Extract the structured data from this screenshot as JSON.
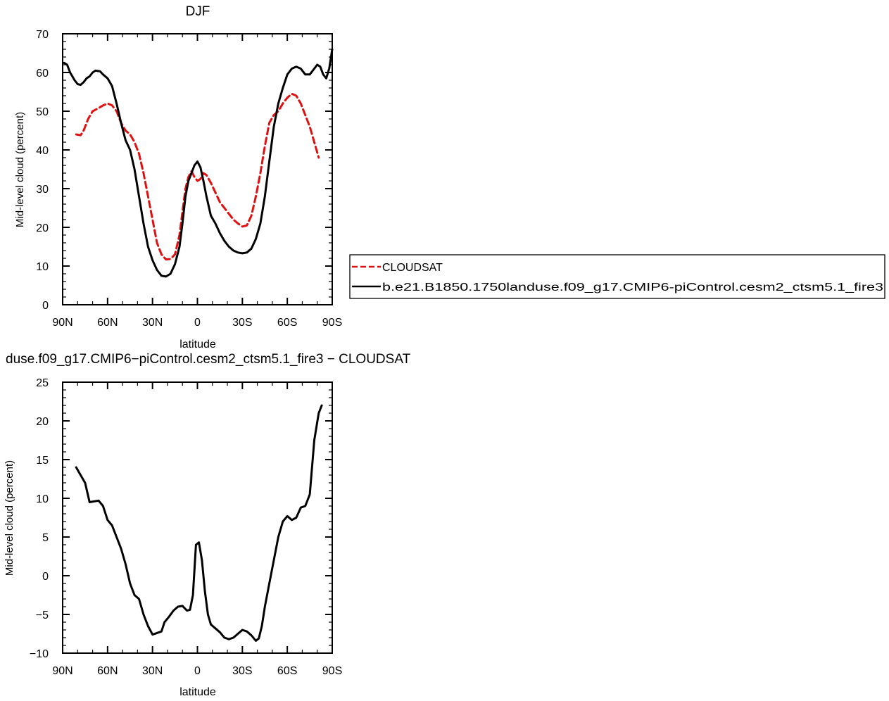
{
  "chart_data": [
    {
      "type": "line",
      "title": "DJF",
      "xlabel": "latitude",
      "ylabel": "Mid-level cloud (percent)",
      "xlim": [
        90,
        -90
      ],
      "ylim": [
        0,
        70
      ],
      "x_ticks": [
        {
          "value": 90,
          "label": "90N"
        },
        {
          "value": 60,
          "label": "60N"
        },
        {
          "value": 30,
          "label": "30N"
        },
        {
          "value": 0,
          "label": "0"
        },
        {
          "value": -30,
          "label": "30S"
        },
        {
          "value": -60,
          "label": "60S"
        },
        {
          "value": -90,
          "label": "90S"
        }
      ],
      "y_ticks": [
        0,
        10,
        20,
        30,
        40,
        50,
        60,
        70
      ],
      "grid": false,
      "legend": "right",
      "series": [
        {
          "name": "CLOUDSAT",
          "color": "#e01010",
          "dash": "dashed",
          "points": [
            [
              81,
              44
            ],
            [
              78,
              43.8
            ],
            [
              76,
              45
            ],
            [
              73,
              48
            ],
            [
              70,
              50
            ],
            [
              66,
              50.8
            ],
            [
              63,
              51.5
            ],
            [
              60,
              52
            ],
            [
              57,
              51.5
            ],
            [
              54,
              50
            ],
            [
              51,
              47
            ],
            [
              48,
              45
            ],
            [
              45,
              44
            ],
            [
              42,
              42
            ],
            [
              39,
              39
            ],
            [
              36,
              34
            ],
            [
              33,
              28
            ],
            [
              30,
              22
            ],
            [
              27,
              16
            ],
            [
              24,
              13
            ],
            [
              21,
              11.7
            ],
            [
              18,
              11.8
            ],
            [
              15,
              13
            ],
            [
              12,
              18
            ],
            [
              10,
              24
            ],
            [
              8,
              30
            ],
            [
              6,
              33
            ],
            [
              4,
              34.5
            ],
            [
              2,
              33
            ],
            [
              0,
              32
            ],
            [
              -2,
              32.5
            ],
            [
              -4,
              34
            ],
            [
              -6,
              33.5
            ],
            [
              -9,
              31.5
            ],
            [
              -12,
              29
            ],
            [
              -15,
              26.5
            ],
            [
              -18,
              25
            ],
            [
              -21,
              23.5
            ],
            [
              -24,
              22
            ],
            [
              -27,
              21
            ],
            [
              -30,
              20.2
            ],
            [
              -33,
              20.5
            ],
            [
              -36,
              23
            ],
            [
              -39,
              28
            ],
            [
              -42,
              34
            ],
            [
              -45,
              41
            ],
            [
              -48,
              47
            ],
            [
              -51,
              49
            ],
            [
              -54,
              50
            ],
            [
              -57,
              52
            ],
            [
              -60,
              53.5
            ],
            [
              -63,
              54.5
            ],
            [
              -66,
              54
            ],
            [
              -69,
              52
            ],
            [
              -72,
              49
            ],
            [
              -75,
              46
            ],
            [
              -78,
              42
            ],
            [
              -81,
              38
            ]
          ]
        },
        {
          "name": "b.e21.B1850.1750landuse.f09_g17.CMIP6-piControl.cesm2_ctsm5.1_fire3",
          "color": "#000000",
          "dash": "solid",
          "points": [
            [
              89,
              62.5
            ],
            [
              87,
              62
            ],
            [
              85,
              60
            ],
            [
              82,
              58
            ],
            [
              80,
              57
            ],
            [
              78,
              56.8
            ],
            [
              76,
              57.5
            ],
            [
              74,
              58.5
            ],
            [
              72,
              59
            ],
            [
              70,
              60
            ],
            [
              68,
              60.5
            ],
            [
              65,
              60.3
            ],
            [
              63,
              59.5
            ],
            [
              60,
              58.5
            ],
            [
              57,
              56.5
            ],
            [
              54,
              52
            ],
            [
              51,
              47
            ],
            [
              48,
              42.5
            ],
            [
              45,
              40
            ],
            [
              42,
              35
            ],
            [
              39,
              28
            ],
            [
              36,
              21
            ],
            [
              33,
              15
            ],
            [
              30,
              11.5
            ],
            [
              27,
              9
            ],
            [
              24,
              7.5
            ],
            [
              21,
              7.3
            ],
            [
              18,
              8
            ],
            [
              15,
              10.5
            ],
            [
              12,
              15
            ],
            [
              10,
              21
            ],
            [
              8,
              28
            ],
            [
              6,
              32
            ],
            [
              4,
              34
            ],
            [
              2,
              36
            ],
            [
              0,
              37
            ],
            [
              -2,
              35.5
            ],
            [
              -4,
              32
            ],
            [
              -6,
              28
            ],
            [
              -9,
              23
            ],
            [
              -12,
              21
            ],
            [
              -15,
              18.5
            ],
            [
              -18,
              16.5
            ],
            [
              -21,
              15
            ],
            [
              -24,
              14
            ],
            [
              -27,
              13.5
            ],
            [
              -30,
              13.3
            ],
            [
              -33,
              13.5
            ],
            [
              -36,
              14.5
            ],
            [
              -39,
              17
            ],
            [
              -42,
              21
            ],
            [
              -45,
              28
            ],
            [
              -48,
              37
            ],
            [
              -51,
              46
            ],
            [
              -54,
              52
            ],
            [
              -57,
              56
            ],
            [
              -60,
              59.5
            ],
            [
              -63,
              61
            ],
            [
              -66,
              61.5
            ],
            [
              -69,
              61
            ],
            [
              -72,
              59.5
            ],
            [
              -75,
              59.5
            ],
            [
              -78,
              61
            ],
            [
              -80,
              62
            ],
            [
              -82,
              61.5
            ],
            [
              -84,
              59.5
            ],
            [
              -86,
              58.5
            ],
            [
              -88,
              61
            ],
            [
              -90,
              66
            ]
          ]
        }
      ]
    },
    {
      "type": "line",
      "title": "duse.f09_g17.CMIP6−piControl.cesm2_ctsm5.1_fire3 − CLOUDSAT",
      "xlabel": "latitude",
      "ylabel": "Mid-level cloud (percent)",
      "xlim": [
        90,
        -90
      ],
      "ylim": [
        -10,
        25
      ],
      "x_ticks": [
        {
          "value": 90,
          "label": "90N"
        },
        {
          "value": 60,
          "label": "60N"
        },
        {
          "value": 30,
          "label": "30N"
        },
        {
          "value": 0,
          "label": "0"
        },
        {
          "value": -30,
          "label": "30S"
        },
        {
          "value": -60,
          "label": "60S"
        },
        {
          "value": -90,
          "label": "90S"
        }
      ],
      "y_ticks": [
        -10,
        -5,
        0,
        5,
        10,
        15,
        20,
        25
      ],
      "y_tick_labels": [
        "−10",
        "−5",
        "0",
        "5",
        "10",
        "15",
        "20",
        "25"
      ],
      "grid": false,
      "series": [
        {
          "color": "#000000",
          "dash": "solid",
          "points": [
            [
              81,
              14
            ],
            [
              78,
              13
            ],
            [
              75,
              12
            ],
            [
              72,
              9.5
            ],
            [
              69,
              9.6
            ],
            [
              66,
              9.7
            ],
            [
              63,
              9
            ],
            [
              60,
              7.2
            ],
            [
              57,
              6.5
            ],
            [
              54,
              5
            ],
            [
              51,
              3.5
            ],
            [
              48,
              1.5
            ],
            [
              45,
              -1
            ],
            [
              42,
              -2.5
            ],
            [
              39,
              -3
            ],
            [
              36,
              -5
            ],
            [
              33,
              -6.5
            ],
            [
              30,
              -7.6
            ],
            [
              27,
              -7.4
            ],
            [
              24,
              -7.2
            ],
            [
              22,
              -6
            ],
            [
              19,
              -5.3
            ],
            [
              16,
              -4.5
            ],
            [
              13,
              -4
            ],
            [
              10,
              -3.9
            ],
            [
              7,
              -4.5
            ],
            [
              5,
              -4.4
            ],
            [
              3,
              -2.5
            ],
            [
              1,
              4
            ],
            [
              -1,
              4.3
            ],
            [
              -3,
              2
            ],
            [
              -5,
              -2
            ],
            [
              -7,
              -5
            ],
            [
              -9,
              -6.3
            ],
            [
              -12,
              -6.8
            ],
            [
              -15,
              -7.3
            ],
            [
              -18,
              -8
            ],
            [
              -21,
              -8.2
            ],
            [
              -24,
              -8
            ],
            [
              -27,
              -7.5
            ],
            [
              -30,
              -7
            ],
            [
              -33,
              -7.2
            ],
            [
              -36,
              -7.7
            ],
            [
              -39,
              -8.4
            ],
            [
              -41,
              -8.1
            ],
            [
              -43,
              -6.5
            ],
            [
              -45,
              -4
            ],
            [
              -48,
              -1
            ],
            [
              -51,
              2
            ],
            [
              -54,
              5
            ],
            [
              -57,
              7
            ],
            [
              -60,
              7.7
            ],
            [
              -63,
              7.2
            ],
            [
              -66,
              7.5
            ],
            [
              -69,
              8.8
            ],
            [
              -72,
              9
            ],
            [
              -75,
              10.5
            ],
            [
              -78,
              17.5
            ],
            [
              -81,
              21
            ],
            [
              -83,
              22
            ]
          ]
        }
      ]
    }
  ]
}
